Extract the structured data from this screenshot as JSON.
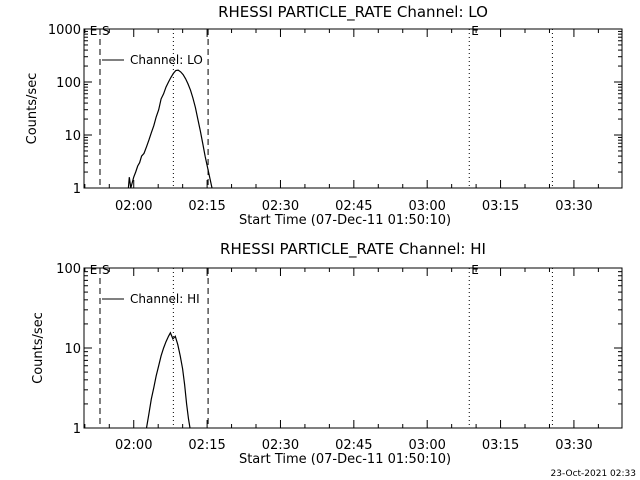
{
  "chart_data": [
    {
      "type": "line",
      "title": "RHESSI PARTICLE_RATE Channel: LO",
      "xlabel": "Start Time (07-Dec-11 01:50:10)",
      "ylabel": "Counts/sec",
      "yscale": "log",
      "ylim": [
        1,
        1000
      ],
      "xlim_minutes": [
        -10.17,
        99.83
      ],
      "x_ticks": [
        {
          "label": "02:00",
          "minute": 0
        },
        {
          "label": "02:15",
          "minute": 15
        },
        {
          "label": "02:30",
          "minute": 30
        },
        {
          "label": "02:45",
          "minute": 45
        },
        {
          "label": "03:00",
          "minute": 60
        },
        {
          "label": "03:15",
          "minute": 75
        },
        {
          "label": "03:30",
          "minute": 90
        }
      ],
      "y_ticks": [
        {
          "label": "1",
          "value": 1
        },
        {
          "label": "10",
          "value": 10
        },
        {
          "label": "100",
          "value": 100
        },
        {
          "label": "1000",
          "value": 1000
        }
      ],
      "legend": "Channel: LO",
      "legend_position": "top-left",
      "markers": [
        {
          "label": "E",
          "minute": -9.4,
          "style": "none"
        },
        {
          "label": "S",
          "minute": -6.9,
          "style": "dashed"
        },
        {
          "label": "",
          "minute": 8.1,
          "style": "dotted"
        },
        {
          "label": "",
          "minute": 15.2,
          "style": "dashed"
        },
        {
          "label": "E",
          "minute": 68.6,
          "style": "dotted"
        },
        {
          "label": "",
          "minute": 85.6,
          "style": "dotted"
        }
      ],
      "series": [
        {
          "name": "Channel: LO",
          "points": [
            [
              -1.1,
              1
            ],
            [
              -0.9,
              1.6
            ],
            [
              -0.6,
              1
            ],
            [
              0,
              1.6
            ],
            [
              0.4,
              2
            ],
            [
              0.8,
              2.6
            ],
            [
              1.2,
              3
            ],
            [
              1.6,
              4
            ],
            [
              2.1,
              4.5
            ],
            [
              2.6,
              6
            ],
            [
              3.1,
              8
            ],
            [
              3.6,
              11
            ],
            [
              4.1,
              15
            ],
            [
              4.6,
              22
            ],
            [
              5.1,
              30
            ],
            [
              5.6,
              48
            ],
            [
              6.1,
              60
            ],
            [
              6.6,
              80
            ],
            [
              7.1,
              100
            ],
            [
              7.6,
              122
            ],
            [
              8.1,
              145
            ],
            [
              8.6,
              165
            ],
            [
              9.1,
              168
            ],
            [
              9.6,
              155
            ],
            [
              10.1,
              138
            ],
            [
              10.6,
              115
            ],
            [
              11.1,
              92
            ],
            [
              11.6,
              70
            ],
            [
              12.1,
              50
            ],
            [
              12.6,
              33
            ],
            [
              13.1,
              20
            ],
            [
              13.6,
              12
            ],
            [
              14.1,
              7
            ],
            [
              14.6,
              4
            ],
            [
              15.1,
              2.4
            ],
            [
              15.6,
              1.5
            ],
            [
              16.0,
              1
            ]
          ]
        }
      ]
    },
    {
      "type": "line",
      "title": "RHESSI PARTICLE_RATE Channel: HI",
      "xlabel": "Start Time (07-Dec-11 01:50:10)",
      "ylabel": "Counts/sec",
      "yscale": "log",
      "ylim": [
        1,
        100
      ],
      "xlim_minutes": [
        -10.17,
        99.83
      ],
      "x_ticks": [
        {
          "label": "02:00",
          "minute": 0
        },
        {
          "label": "02:15",
          "minute": 15
        },
        {
          "label": "02:30",
          "minute": 30
        },
        {
          "label": "02:45",
          "minute": 45
        },
        {
          "label": "03:00",
          "minute": 60
        },
        {
          "label": "03:15",
          "minute": 75
        },
        {
          "label": "03:30",
          "minute": 90
        }
      ],
      "y_ticks": [
        {
          "label": "1",
          "value": 1
        },
        {
          "label": "10",
          "value": 10
        },
        {
          "label": "100",
          "value": 100
        }
      ],
      "legend": "Channel: HI",
      "legend_position": "top-left",
      "markers": [
        {
          "label": "E",
          "minute": -9.4,
          "style": "none"
        },
        {
          "label": "S",
          "minute": -6.9,
          "style": "dashed"
        },
        {
          "label": "",
          "minute": 8.1,
          "style": "dotted"
        },
        {
          "label": "",
          "minute": 15.2,
          "style": "dashed"
        },
        {
          "label": "E",
          "minute": 68.6,
          "style": "dotted"
        },
        {
          "label": "",
          "minute": 85.6,
          "style": "dotted"
        }
      ],
      "series": [
        {
          "name": "Channel: HI",
          "points": [
            [
              2.6,
              1
            ],
            [
              3.1,
              1.5
            ],
            [
              3.6,
              2.3
            ],
            [
              4.1,
              3.2
            ],
            [
              4.6,
              4.5
            ],
            [
              5.1,
              6
            ],
            [
              5.6,
              8
            ],
            [
              6.1,
              10
            ],
            [
              6.6,
              12
            ],
            [
              7.1,
              14
            ],
            [
              7.5,
              15.5
            ],
            [
              8.0,
              13
            ],
            [
              8.5,
              14
            ],
            [
              9.0,
              11
            ],
            [
              9.5,
              8
            ],
            [
              10.0,
              5.5
            ],
            [
              10.4,
              3.5
            ],
            [
              10.8,
              2
            ],
            [
              11.2,
              1.3
            ],
            [
              11.5,
              1
            ]
          ]
        }
      ]
    }
  ],
  "footer": {
    "timestamp": "23-Oct-2021 02:33"
  }
}
